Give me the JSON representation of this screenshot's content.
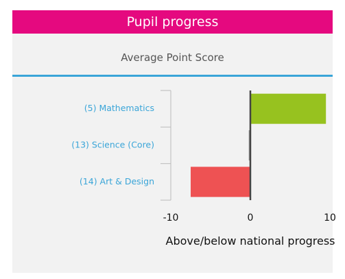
{
  "header": {
    "title": "Pupil progress"
  },
  "chart_data": {
    "type": "hbar",
    "title": "Average Point Score",
    "categories": [
      "(5) Mathematics",
      "(13) Science (Core)",
      "(14) Art & Design"
    ],
    "values": [
      9.5,
      -0.2,
      -7.5
    ],
    "colors": [
      "#97c21f",
      "#9a9a9a",
      "#ee5253"
    ],
    "xlim": [
      -10,
      10
    ],
    "xticks": [
      -10,
      0,
      10
    ],
    "x_label": "Above/below national progress"
  }
}
